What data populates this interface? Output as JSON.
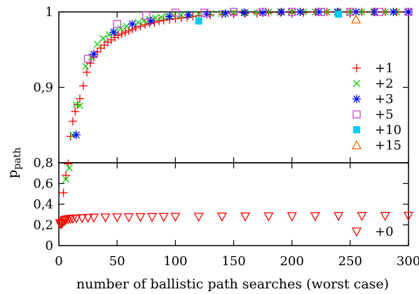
{
  "chart_data": {
    "type": "scatter",
    "xlabel": "number of ballistic path searches (worst case)",
    "ylabel": "p",
    "ylabel_subscript": "path",
    "xlim": [
      0,
      300
    ],
    "x_ticks": [
      {
        "value": 0,
        "label": "0"
      },
      {
        "value": 50,
        "label": "50"
      },
      {
        "value": 100,
        "label": "100"
      },
      {
        "value": 150,
        "label": "150"
      },
      {
        "value": 200,
        "label": "200"
      },
      {
        "value": 250,
        "label": "250"
      },
      {
        "value": 300,
        "label": "300"
      }
    ],
    "panels": [
      {
        "name": "upper",
        "ylim": [
          0.8,
          1.0
        ],
        "y_ticks": [
          {
            "value": 0.8,
            "label": "0,8"
          },
          {
            "value": 0.9,
            "label": "0,9"
          },
          {
            "value": 1.0,
            "label": "1"
          }
        ]
      },
      {
        "name": "lower",
        "ylim": [
          0,
          0.8
        ],
        "y_ticks": [
          {
            "value": 0,
            "label": "0"
          },
          {
            "value": 0.2,
            "label": "0,2"
          },
          {
            "value": 0.4,
            "label": "0,4"
          },
          {
            "value": 0.6,
            "label": "0,6"
          }
        ]
      }
    ],
    "legend_position": "right",
    "series": [
      {
        "name": "+1",
        "marker": "plus",
        "color": "#ff0000",
        "x": [
          2,
          4,
          6,
          8,
          10,
          12,
          14,
          16,
          18,
          21,
          24,
          27,
          30,
          33,
          36,
          39,
          42,
          45,
          48,
          51,
          54,
          57,
          60,
          63,
          66,
          70,
          74,
          78,
          82,
          86,
          90,
          95,
          100,
          105,
          110,
          115,
          120,
          130,
          140,
          150,
          160,
          170,
          180,
          190,
          200,
          210,
          220,
          230,
          240,
          250,
          260,
          270,
          280,
          290,
          300
        ],
        "y": [
          0.21,
          0.51,
          0.68,
          0.79,
          0.835,
          0.855,
          0.868,
          0.877,
          0.885,
          0.902,
          0.92,
          0.932,
          0.94,
          0.947,
          0.952,
          0.956,
          0.96,
          0.963,
          0.966,
          0.969,
          0.971,
          0.973,
          0.975,
          0.977,
          0.979,
          0.981,
          0.983,
          0.985,
          0.986,
          0.988,
          0.989,
          0.99,
          0.991,
          0.992,
          0.993,
          0.994,
          0.995,
          0.996,
          0.997,
          0.997,
          0.998,
          0.998,
          0.999,
          0.999,
          0.999,
          0.999,
          1.0,
          1.0,
          1.0,
          1.0,
          1.0,
          1.0,
          1.0,
          1.0,
          1.0
        ]
      },
      {
        "name": "+2",
        "marker": "cross",
        "color": "#00cc00",
        "x": [
          3,
          6,
          9,
          12,
          15,
          18,
          23,
          28,
          33,
          38,
          43,
          48,
          53,
          58,
          63,
          68,
          73,
          78,
          83,
          88,
          93,
          98,
          105,
          112,
          120,
          130,
          140,
          150,
          160,
          170,
          180,
          190,
          200,
          210,
          220,
          230,
          240,
          250,
          260,
          270,
          280,
          290,
          300
        ],
        "y": [
          0.22,
          0.64,
          0.75,
          0.837,
          0.877,
          0.876,
          0.928,
          0.94,
          0.957,
          0.965,
          0.97,
          0.974,
          0.978,
          0.981,
          0.984,
          0.986,
          0.988,
          0.99,
          0.992,
          0.993,
          0.994,
          0.995,
          0.996,
          0.997,
          0.997,
          0.998,
          0.998,
          0.999,
          0.999,
          0.999,
          1.0,
          1.0,
          1.0,
          1.0,
          1.0,
          1.0,
          1.0,
          1.0,
          1.0,
          1.0,
          1.0,
          1.0,
          1.0
        ]
      },
      {
        "name": "+3",
        "marker": "star",
        "color": "#0000ff",
        "x": [
          15,
          30,
          47,
          63,
          79,
          95,
          111,
          127,
          143,
          159,
          175,
          191,
          207,
          223,
          239,
          255,
          271,
          287,
          300
        ],
        "y": [
          0.837,
          0.944,
          0.973,
          0.984,
          0.988,
          0.994,
          0.996,
          0.997,
          0.998,
          0.999,
          0.999,
          1.0,
          1.0,
          1.0,
          1.0,
          1.0,
          1.0,
          1.0,
          1.0
        ]
      },
      {
        "name": "+5",
        "marker": "square",
        "color": "#cc44cc",
        "x": [
          25,
          50,
          75,
          100,
          125,
          150,
          175,
          200,
          225,
          250,
          275,
          300
        ],
        "y": [
          0.938,
          0.984,
          0.995,
          0.999,
          0.999,
          1.0,
          1.0,
          1.0,
          1.0,
          1.0,
          1.0,
          1.0
        ]
      },
      {
        "name": "+10",
        "marker": "filled-square",
        "color": "#00ccee",
        "x": [
          120,
          240
        ],
        "y": [
          0.988,
          0.997
        ]
      },
      {
        "name": "+15",
        "marker": "triangle-up",
        "color": "#ff6600",
        "x": [
          255
        ],
        "y": [
          0.99
        ]
      },
      {
        "name": "+0",
        "marker": "triangle-down",
        "color": "#ff0000",
        "x": [
          1,
          2,
          3,
          4,
          5,
          6,
          8,
          10,
          12,
          15,
          20,
          25,
          30,
          40,
          50,
          60,
          70,
          80,
          90,
          100,
          120,
          140,
          160,
          180,
          200,
          220,
          240,
          260,
          280,
          300
        ],
        "y": [
          0.215,
          0.205,
          0.22,
          0.235,
          0.245,
          0.25,
          0.255,
          0.258,
          0.26,
          0.262,
          0.265,
          0.268,
          0.27,
          0.272,
          0.273,
          0.274,
          0.275,
          0.276,
          0.277,
          0.278,
          0.279,
          0.28,
          0.281,
          0.282,
          0.283,
          0.284,
          0.285,
          0.286,
          0.287,
          0.288
        ]
      }
    ]
  }
}
